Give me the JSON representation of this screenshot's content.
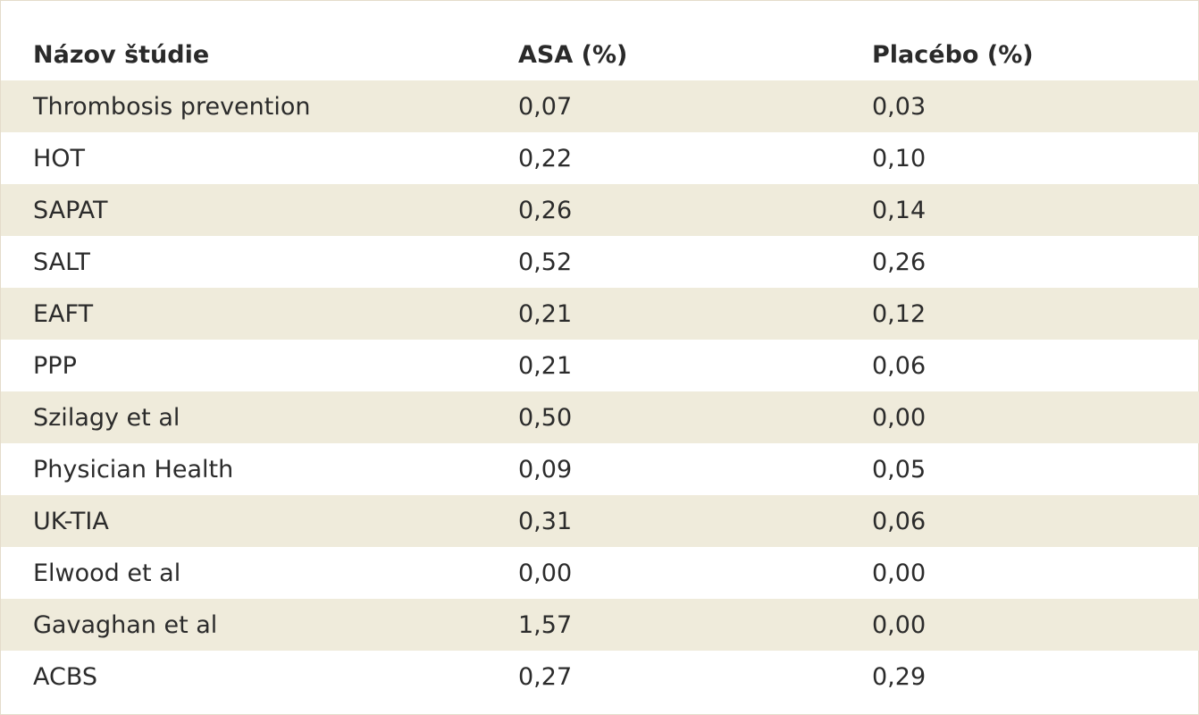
{
  "table": {
    "headers": [
      "Názov štúdie",
      "ASA (%)",
      "Placébo (%)"
    ],
    "rows": [
      [
        "Thrombosis prevention",
        "0,07",
        "0,03"
      ],
      [
        "HOT",
        "0,22",
        "0,10"
      ],
      [
        "SAPAT",
        "0,26",
        "0,14"
      ],
      [
        "SALT",
        "0,52",
        "0,26"
      ],
      [
        "EAFT",
        "0,21",
        "0,12"
      ],
      [
        "PPP",
        "0,21",
        "0,06"
      ],
      [
        "Szilagy et al",
        "0,50",
        "0,00"
      ],
      [
        "Physician Health",
        "0,09",
        "0,05"
      ],
      [
        "UK-TIA",
        "0,31",
        "0,06"
      ],
      [
        "Elwood et al",
        "0,00",
        "0,00"
      ],
      [
        "Gavaghan et al",
        "1,57",
        "0,00"
      ],
      [
        "ACBS",
        "0,27",
        "0,29"
      ]
    ],
    "colors": {
      "row_shade": "#efebdb",
      "text": "#2b2b2b"
    }
  }
}
